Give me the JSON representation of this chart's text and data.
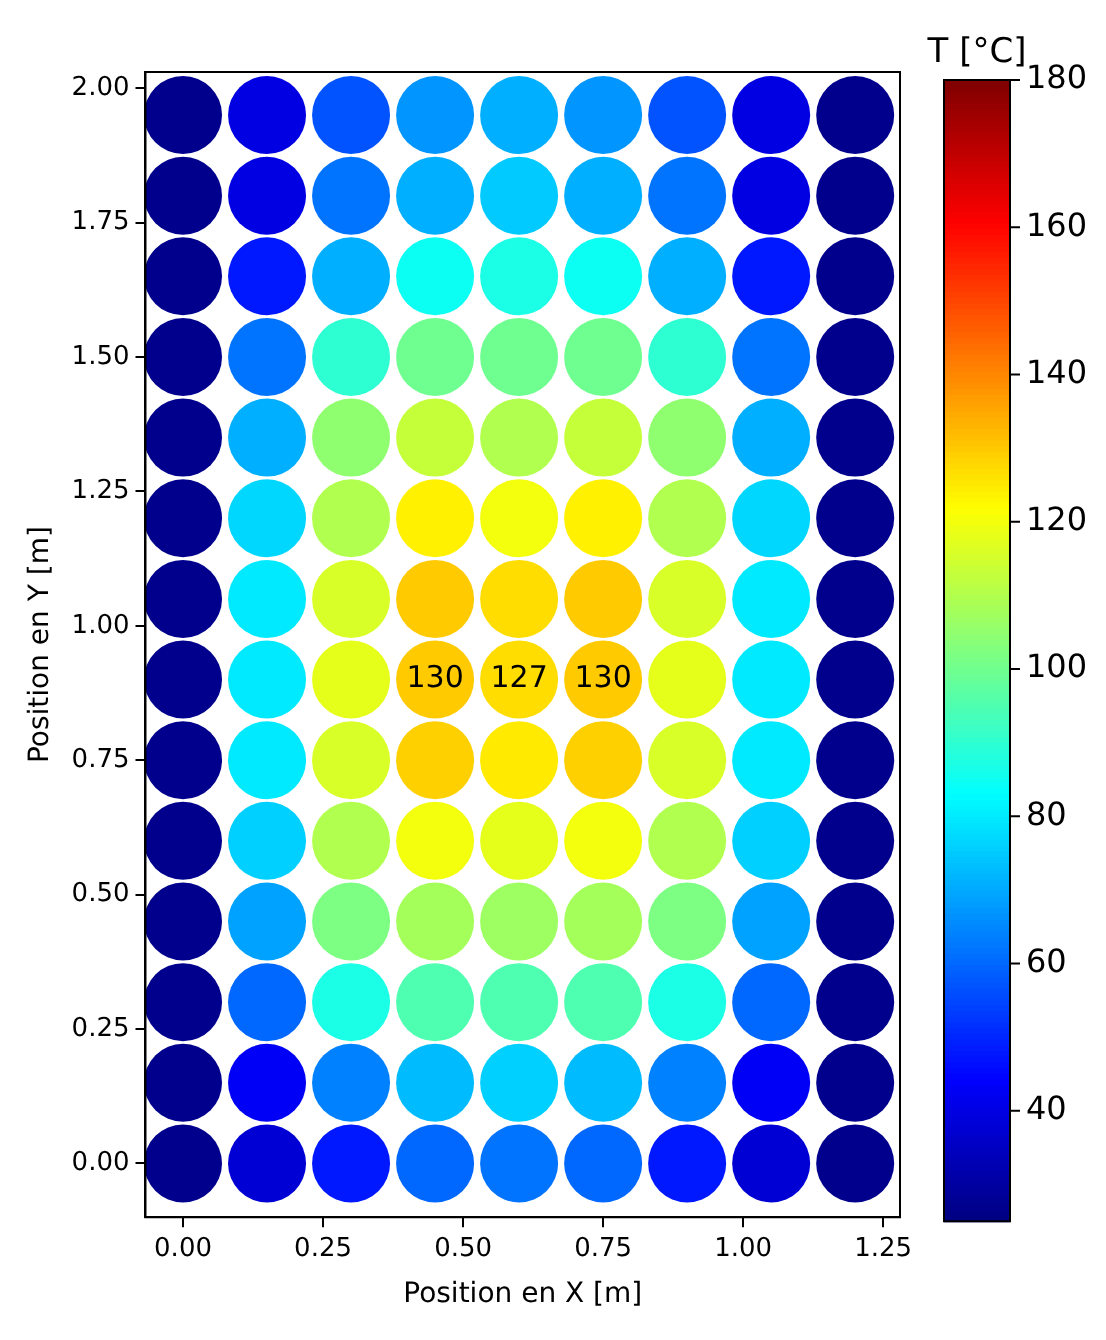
{
  "chart_data": {
    "type": "scatter",
    "xlabel": "Position en X [m]",
    "ylabel": "Position en Y [m]",
    "clabel": "T [°C]",
    "xlim": [
      -0.067,
      1.28
    ],
    "ylim": [
      -0.1,
      2.03
    ],
    "xticks": [
      {
        "value": 0,
        "label": "0.00"
      },
      {
        "value": 0.25,
        "label": "0.25"
      },
      {
        "value": 0.5,
        "label": "0.50"
      },
      {
        "value": 0.75,
        "label": "0.75"
      },
      {
        "value": 1,
        "label": "1.00"
      },
      {
        "value": 1.25,
        "label": "1.25"
      }
    ],
    "yticks": [
      {
        "value": 0,
        "label": "0.00"
      },
      {
        "value": 0.25,
        "label": "0.25"
      },
      {
        "value": 0.5,
        "label": "0.50"
      },
      {
        "value": 0.75,
        "label": "0.75"
      },
      {
        "value": 1,
        "label": "1.00"
      },
      {
        "value": 1.25,
        "label": "1.25"
      },
      {
        "value": 1.5,
        "label": "1.50"
      },
      {
        "value": 1.75,
        "label": "1.75"
      },
      {
        "value": 2,
        "label": "2.00"
      }
    ],
    "clim": [
      25,
      180
    ],
    "cticks": [
      40,
      60,
      80,
      100,
      120,
      140,
      160,
      180
    ],
    "grid": false,
    "legend": false,
    "marker": "circle",
    "annotations": [
      {
        "text": "130",
        "x": 0.45,
        "y": 0.9
      },
      {
        "text": "127",
        "x": 0.6,
        "y": 0.9
      },
      {
        "text": "130",
        "x": 0.75,
        "y": 0.9
      }
    ],
    "x": [
      0,
      0.15,
      0.3,
      0.45,
      0.6,
      0.75,
      0.9,
      1.05,
      1.2,
      0,
      0.15,
      0.3,
      0.45,
      0.6,
      0.75,
      0.9,
      1.05,
      1.2,
      0,
      0.15,
      0.3,
      0.45,
      0.6,
      0.75,
      0.9,
      1.05,
      1.2,
      0,
      0.15,
      0.3,
      0.45,
      0.6,
      0.75,
      0.9,
      1.05,
      1.2,
      0,
      0.15,
      0.3,
      0.45,
      0.6,
      0.75,
      0.9,
      1.05,
      1.2,
      0,
      0.15,
      0.3,
      0.45,
      0.6,
      0.75,
      0.9,
      1.05,
      1.2,
      0,
      0.15,
      0.3,
      0.45,
      0.6,
      0.75,
      0.9,
      1.05,
      1.2,
      0,
      0.15,
      0.3,
      0.45,
      0.6,
      0.75,
      0.9,
      1.05,
      1.2,
      0,
      0.15,
      0.3,
      0.45,
      0.6,
      0.75,
      0.9,
      1.05,
      1.2,
      0,
      0.15,
      0.3,
      0.45,
      0.6,
      0.75,
      0.9,
      1.05,
      1.2,
      0,
      0.15,
      0.3,
      0.45,
      0.6,
      0.75,
      0.9,
      1.05,
      1.2,
      0,
      0.15,
      0.3,
      0.45,
      0.6,
      0.75,
      0.9,
      1.05,
      1.2,
      0,
      0.15,
      0.3,
      0.45,
      0.6,
      0.75,
      0.9,
      1.05,
      1.2,
      0,
      0.15,
      0.3,
      0.45,
      0.6,
      0.75,
      0.9,
      1.05,
      1.2
    ],
    "values": [
      0,
      0,
      0,
      0,
      0,
      0,
      0,
      0,
      0,
      0.15,
      0.15,
      0.15,
      0.15,
      0.15,
      0.15,
      0.15,
      0.15,
      0.15,
      0.3,
      0.3,
      0.3,
      0.3,
      0.3,
      0.3,
      0.3,
      0.3,
      0.3,
      0.45,
      0.45,
      0.45,
      0.45,
      0.45,
      0.45,
      0.45,
      0.45,
      0.45,
      0.6,
      0.6,
      0.6,
      0.6,
      0.6,
      0.6,
      0.6,
      0.6,
      0.6,
      0.75,
      0.75,
      0.75,
      0.75,
      0.75,
      0.75,
      0.75,
      0.75,
      0.75,
      0.9,
      0.9,
      0.9,
      0.9,
      0.9,
      0.9,
      0.9,
      0.9,
      0.9,
      1.05,
      1.05,
      1.05,
      1.05,
      1.05,
      1.05,
      1.05,
      1.05,
      1.05,
      1.2,
      1.2,
      1.2,
      1.2,
      1.2,
      1.2,
      1.2,
      1.2,
      1.2,
      1.35,
      1.35,
      1.35,
      1.35,
      1.35,
      1.35,
      1.35,
      1.35,
      1.35,
      1.5,
      1.5,
      1.5,
      1.5,
      1.5,
      1.5,
      1.5,
      1.5,
      1.5,
      1.65,
      1.65,
      1.65,
      1.65,
      1.65,
      1.65,
      1.65,
      1.65,
      1.65,
      1.8,
      1.8,
      1.8,
      1.8,
      1.8,
      1.8,
      1.8,
      1.8,
      1.8,
      1.95,
      1.95,
      1.95,
      1.95,
      1.95,
      1.95,
      1.95,
      1.95,
      1.95
    ],
    "cvalues": [
      27,
      38,
      48,
      60,
      62,
      60,
      48,
      38,
      27,
      27,
      43,
      64,
      73,
      76,
      73,
      64,
      43,
      27,
      27,
      60,
      87,
      95,
      95,
      95,
      87,
      60,
      27,
      27,
      69,
      102,
      108,
      107,
      108,
      102,
      69,
      27,
      27,
      76,
      110,
      120,
      118,
      120,
      110,
      76,
      27,
      27,
      80,
      116,
      129,
      125,
      129,
      116,
      80,
      27,
      27,
      80,
      118,
      130,
      127,
      130,
      118,
      80,
      27,
      27,
      80,
      116,
      130,
      127,
      130,
      116,
      80,
      27,
      27,
      77,
      110,
      124,
      120,
      124,
      110,
      77,
      27,
      27,
      71,
      105,
      113,
      110,
      113,
      105,
      71,
      27,
      27,
      62,
      90,
      100,
      100,
      100,
      90,
      62,
      27,
      27,
      48,
      71,
      85,
      87,
      85,
      71,
      48,
      27,
      27,
      40,
      62,
      71,
      75,
      71,
      62,
      40,
      27,
      27,
      40,
      57,
      67,
      71,
      67,
      57,
      40,
      27
    ]
  }
}
